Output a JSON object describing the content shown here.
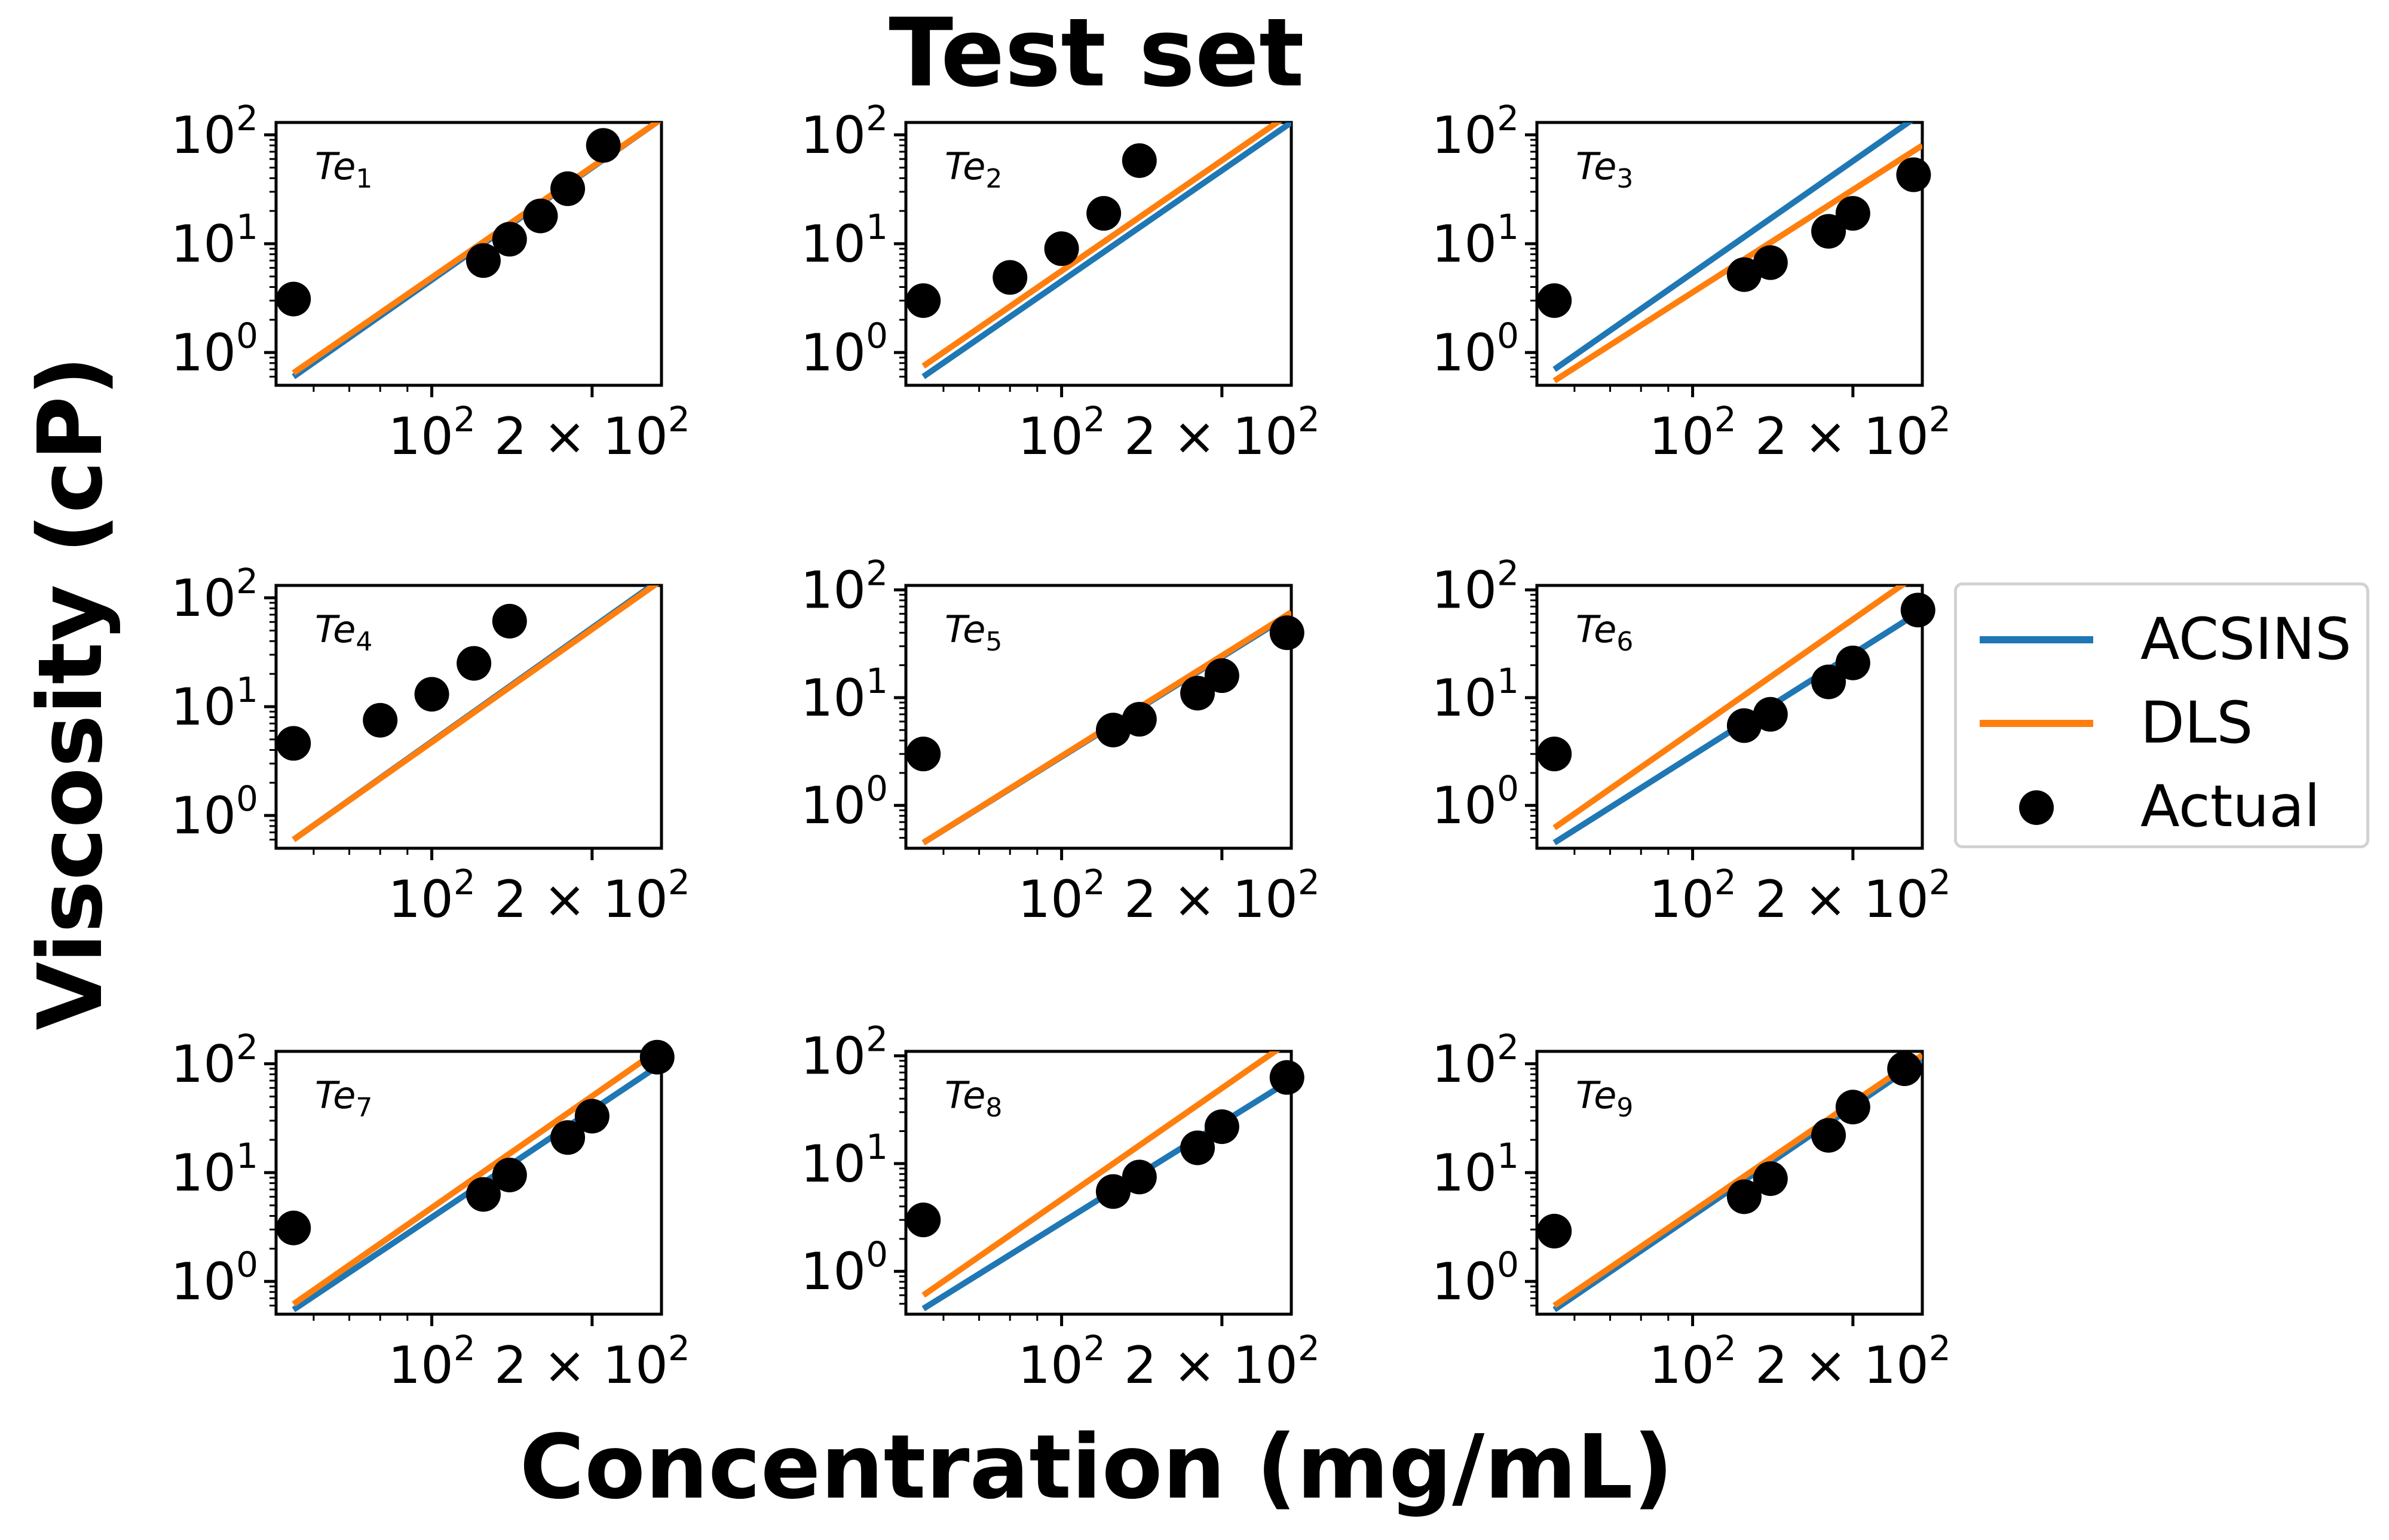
{
  "title": "Test set",
  "ylabel": "Viscosity (cP)",
  "xlabel": "Concentration (mg/mL)",
  "colors": {
    "ACSINS": "#1f77b4",
    "DLS": "#ff7f0e",
    "Actual": "#000000"
  },
  "legend": {
    "position": "center-right",
    "items": [
      {
        "label": "ACSINS",
        "kind": "line",
        "color": "#1f77b4"
      },
      {
        "label": "DLS",
        "kind": "line",
        "color": "#ff7f0e"
      },
      {
        "label": "Actual",
        "kind": "marker",
        "color": "#000000"
      }
    ]
  },
  "chart_data": [
    {
      "type": "scatter",
      "panel": "Te",
      "sub": "1",
      "xscale": "log",
      "yscale": "log",
      "xlim": [
        51,
        270
      ],
      "ylim": [
        0.5,
        130
      ],
      "xticks": [
        {
          "value": 100,
          "base": "10",
          "exp": "2"
        },
        {
          "value": 200,
          "base": "2 × 10",
          "exp": "2"
        }
      ],
      "yticks": [
        {
          "value": 1,
          "base": "10",
          "exp": "0"
        },
        {
          "value": 10,
          "base": "10",
          "exp": "1"
        },
        {
          "value": 100,
          "base": "10",
          "exp": "2"
        }
      ],
      "series": [
        {
          "name": "ACSINS",
          "type": "line",
          "x": [
            55,
            270
          ],
          "y": [
            0.6,
            140
          ]
        },
        {
          "name": "DLS",
          "type": "line",
          "x": [
            55,
            270
          ],
          "y": [
            0.65,
            140
          ]
        },
        {
          "name": "Actual",
          "type": "scatter",
          "x": [
            55,
            125,
            140,
            160,
            180,
            210
          ],
          "y": [
            3.1,
            7,
            11,
            18,
            32,
            80
          ]
        }
      ]
    },
    {
      "type": "scatter",
      "panel": "Te",
      "sub": "2",
      "xscale": "log",
      "yscale": "log",
      "xlim": [
        51,
        270
      ],
      "ylim": [
        0.5,
        130
      ],
      "xticks": [
        {
          "value": 100,
          "base": "10",
          "exp": "2"
        },
        {
          "value": 200,
          "base": "2 × 10",
          "exp": "2"
        }
      ],
      "yticks": [
        {
          "value": 1,
          "base": "10",
          "exp": "0"
        },
        {
          "value": 10,
          "base": "10",
          "exp": "1"
        },
        {
          "value": 100,
          "base": "10",
          "exp": "2"
        }
      ],
      "series": [
        {
          "name": "ACSINS",
          "type": "line",
          "x": [
            55,
            270
          ],
          "y": [
            0.6,
            130
          ]
        },
        {
          "name": "DLS",
          "type": "line",
          "x": [
            55,
            270
          ],
          "y": [
            0.75,
            160
          ]
        },
        {
          "name": "Actual",
          "type": "scatter",
          "x": [
            55,
            80,
            100,
            120,
            140
          ],
          "y": [
            3.0,
            4.9,
            9,
            19,
            58
          ]
        }
      ]
    },
    {
      "type": "scatter",
      "panel": "Te",
      "sub": "3",
      "xscale": "log",
      "yscale": "log",
      "xlim": [
        51,
        270
      ],
      "ylim": [
        0.5,
        130
      ],
      "xticks": [
        {
          "value": 100,
          "base": "10",
          "exp": "2"
        },
        {
          "value": 200,
          "base": "2 × 10",
          "exp": "2"
        }
      ],
      "yticks": [
        {
          "value": 1,
          "base": "10",
          "exp": "0"
        },
        {
          "value": 10,
          "base": "10",
          "exp": "1"
        },
        {
          "value": 100,
          "base": "10",
          "exp": "2"
        }
      ],
      "series": [
        {
          "name": "ACSINS",
          "type": "line",
          "x": [
            55,
            270
          ],
          "y": [
            0.7,
            160
          ]
        },
        {
          "name": "DLS",
          "type": "line",
          "x": [
            55,
            270
          ],
          "y": [
            0.55,
            80
          ]
        },
        {
          "name": "Actual",
          "type": "scatter",
          "x": [
            55,
            125,
            140,
            180,
            200,
            260
          ],
          "y": [
            3.0,
            5.2,
            6.7,
            13,
            19,
            43
          ]
        }
      ]
    },
    {
      "type": "scatter",
      "panel": "Te",
      "sub": "4",
      "xscale": "log",
      "yscale": "log",
      "xlim": [
        51,
        270
      ],
      "ylim": [
        0.5,
        130
      ],
      "xticks": [
        {
          "value": 100,
          "base": "10",
          "exp": "2"
        },
        {
          "value": 200,
          "base": "2 × 10",
          "exp": "2"
        }
      ],
      "yticks": [
        {
          "value": 1,
          "base": "10",
          "exp": "0"
        },
        {
          "value": 10,
          "base": "10",
          "exp": "1"
        },
        {
          "value": 100,
          "base": "10",
          "exp": "2"
        }
      ],
      "series": [
        {
          "name": "ACSINS",
          "type": "line",
          "x": [
            55,
            270
          ],
          "y": [
            0.6,
            150
          ]
        },
        {
          "name": "DLS",
          "type": "line",
          "x": [
            55,
            270
          ],
          "y": [
            0.6,
            145
          ]
        },
        {
          "name": "Actual",
          "type": "scatter",
          "x": [
            55,
            80,
            100,
            120,
            140
          ],
          "y": [
            4.6,
            7.5,
            13,
            25,
            61
          ]
        }
      ]
    },
    {
      "type": "scatter",
      "panel": "Te",
      "sub": "5",
      "xscale": "log",
      "yscale": "log",
      "xlim": [
        51,
        270
      ],
      "ylim": [
        0.4,
        110
      ],
      "xticks": [
        {
          "value": 100,
          "base": "10",
          "exp": "2"
        },
        {
          "value": 200,
          "base": "2 × 10",
          "exp": "2"
        }
      ],
      "yticks": [
        {
          "value": 1,
          "base": "10",
          "exp": "0"
        },
        {
          "value": 10,
          "base": "10",
          "exp": "1"
        },
        {
          "value": 100,
          "base": "10",
          "exp": "2"
        }
      ],
      "series": [
        {
          "name": "ACSINS",
          "type": "line",
          "x": [
            55,
            270
          ],
          "y": [
            0.45,
            60
          ]
        },
        {
          "name": "DLS",
          "type": "line",
          "x": [
            55,
            270
          ],
          "y": [
            0.45,
            62
          ]
        },
        {
          "name": "Actual",
          "type": "scatter",
          "x": [
            55,
            125,
            140,
            180,
            200,
            265
          ],
          "y": [
            3.0,
            5.0,
            6.3,
            11,
            16,
            40
          ]
        }
      ]
    },
    {
      "type": "scatter",
      "panel": "Te",
      "sub": "6",
      "xscale": "log",
      "yscale": "log",
      "xlim": [
        51,
        270
      ],
      "ylim": [
        0.4,
        110
      ],
      "xticks": [
        {
          "value": 100,
          "base": "10",
          "exp": "2"
        },
        {
          "value": 200,
          "base": "2 × 10",
          "exp": "2"
        }
      ],
      "yticks": [
        {
          "value": 1,
          "base": "10",
          "exp": "0"
        },
        {
          "value": 10,
          "base": "10",
          "exp": "1"
        },
        {
          "value": 100,
          "base": "10",
          "exp": "2"
        }
      ],
      "series": [
        {
          "name": "ACSINS",
          "type": "line",
          "x": [
            55,
            270
          ],
          "y": [
            0.45,
            65
          ]
        },
        {
          "name": "DLS",
          "type": "line",
          "x": [
            55,
            270
          ],
          "y": [
            0.62,
            150
          ]
        },
        {
          "name": "Actual",
          "type": "scatter",
          "x": [
            55,
            125,
            140,
            180,
            200,
            265
          ],
          "y": [
            3.0,
            5.5,
            7,
            14,
            21,
            65
          ]
        }
      ]
    },
    {
      "type": "scatter",
      "panel": "Te",
      "sub": "7",
      "xscale": "log",
      "yscale": "log",
      "xlim": [
        51,
        270
      ],
      "ylim": [
        0.5,
        130
      ],
      "xticks": [
        {
          "value": 100,
          "base": "10",
          "exp": "2"
        },
        {
          "value": 200,
          "base": "2 × 10",
          "exp": "2"
        }
      ],
      "yticks": [
        {
          "value": 1,
          "base": "10",
          "exp": "0"
        },
        {
          "value": 10,
          "base": "10",
          "exp": "1"
        },
        {
          "value": 100,
          "base": "10",
          "exp": "2"
        }
      ],
      "series": [
        {
          "name": "ACSINS",
          "type": "line",
          "x": [
            55,
            270
          ],
          "y": [
            0.55,
            100
          ]
        },
        {
          "name": "DLS",
          "type": "line",
          "x": [
            55,
            270
          ],
          "y": [
            0.62,
            140
          ]
        },
        {
          "name": "Actual",
          "type": "scatter",
          "x": [
            55,
            125,
            140,
            180,
            200,
            265
          ],
          "y": [
            3.1,
            6.3,
            9.5,
            21,
            33,
            115
          ]
        }
      ]
    },
    {
      "type": "scatter",
      "panel": "Te",
      "sub": "8",
      "xscale": "log",
      "yscale": "log",
      "xlim": [
        51,
        270
      ],
      "ylim": [
        0.4,
        110
      ],
      "xticks": [
        {
          "value": 100,
          "base": "10",
          "exp": "2"
        },
        {
          "value": 200,
          "base": "2 × 10",
          "exp": "2"
        }
      ],
      "yticks": [
        {
          "value": 1,
          "base": "10",
          "exp": "0"
        },
        {
          "value": 10,
          "base": "10",
          "exp": "1"
        },
        {
          "value": 100,
          "base": "10",
          "exp": "2"
        }
      ],
      "series": [
        {
          "name": "ACSINS",
          "type": "line",
          "x": [
            55,
            270
          ],
          "y": [
            0.45,
            60
          ]
        },
        {
          "name": "DLS",
          "type": "line",
          "x": [
            55,
            270
          ],
          "y": [
            0.6,
            140
          ]
        },
        {
          "name": "Actual",
          "type": "scatter",
          "x": [
            55,
            125,
            140,
            180,
            200,
            265
          ],
          "y": [
            3.0,
            5.5,
            7.5,
            14,
            22,
            63
          ]
        }
      ]
    },
    {
      "type": "scatter",
      "panel": "Te",
      "sub": "9",
      "xscale": "log",
      "yscale": "log",
      "xlim": [
        51,
        270
      ],
      "ylim": [
        0.5,
        130
      ],
      "xticks": [
        {
          "value": 100,
          "base": "10",
          "exp": "2"
        },
        {
          "value": 200,
          "base": "2 × 10",
          "exp": "2"
        }
      ],
      "yticks": [
        {
          "value": 1,
          "base": "10",
          "exp": "0"
        },
        {
          "value": 10,
          "base": "10",
          "exp": "1"
        },
        {
          "value": 100,
          "base": "10",
          "exp": "2"
        }
      ],
      "series": [
        {
          "name": "ACSINS",
          "type": "line",
          "x": [
            55,
            270
          ],
          "y": [
            0.55,
            110
          ]
        },
        {
          "name": "DLS",
          "type": "line",
          "x": [
            55,
            270
          ],
          "y": [
            0.6,
            120
          ]
        },
        {
          "name": "Actual",
          "type": "scatter",
          "x": [
            55,
            125,
            140,
            180,
            200,
            250
          ],
          "y": [
            2.9,
            6,
            8.8,
            22,
            40,
            90
          ]
        }
      ]
    }
  ]
}
